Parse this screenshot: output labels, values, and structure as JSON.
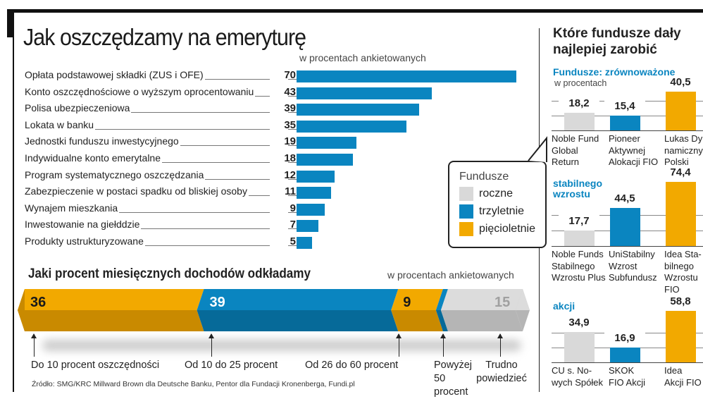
{
  "title": "Jak oszczędzamy na emeryturę",
  "chart_data": [
    {
      "type": "bar",
      "orientation": "horizontal",
      "title": "Jak oszczędzamy na emeryturę",
      "unit": "w procentach ankietowanych",
      "categories": [
        "Opłata podstawowej składki (ZUS i OFE)",
        "Konto oszczędnościowe o wyższym oprocentowaniu",
        "Polisa ubezpieczeniowa",
        "Lokata w banku",
        "Jednostki funduszu inwestycyjnego",
        "Indywidualne konto emerytalne",
        "Program systematycznego oszczędzania",
        "Zabezpieczenie w postaci spadku od bliskiej osoby",
        "Wynajem mieszkania",
        "Inwestowanie na giełddzie",
        "Produkty ustrukturyzowane"
      ],
      "values": [
        70,
        43,
        39,
        35,
        19,
        18,
        12,
        11,
        9,
        7,
        5
      ],
      "color": "#0a85c0"
    },
    {
      "type": "bar",
      "orientation": "stacked-horizontal",
      "title": "Jaki procent miesięcznych dochodów odkładamy",
      "unit": "w procentach ankietowanych",
      "segments": [
        {
          "label": "Do 10 procent oszczędności",
          "value": 36,
          "value_label": "36",
          "color": "#f2a900",
          "dark": "#c98a00",
          "text": "#1a1a1a"
        },
        {
          "label": "Od 10 do 25 procent",
          "value": 39,
          "value_label": "39",
          "color": "#0a85c0",
          "dark": "#066a99",
          "text": "#ffffff"
        },
        {
          "label": "Od 26 do 60 procent",
          "value": 9,
          "value_label": "9",
          "color": "#f2a900",
          "dark": "#c98a00",
          "text": "#1a1a1a"
        },
        {
          "label": "Powyżej 50 procent",
          "value": 1,
          "value_label": "",
          "color": "#0a85c0",
          "dark": "#066a99",
          "text": "#ffffff"
        },
        {
          "label": "Trudno powiedzieć",
          "value": 15,
          "value_label": "15",
          "color": "#dcdcdc",
          "dark": "#b5b5b5",
          "text": "#a0a0a0"
        }
      ]
    },
    {
      "type": "bar",
      "title": "Fundusze: zrównoważone",
      "unit": "w procentach",
      "categories": [
        "Noble Fund Global Return",
        "Pioneer Aktywnej Alokacji FIO",
        "Lukas Dynamiczny Polski"
      ],
      "label_lines": [
        [
          "Noble Fund",
          "Global",
          "Return"
        ],
        [
          "Pioneer",
          "Aktywnej",
          "Alokacji FIO"
        ],
        [
          "Lukas Dy",
          "namiczny",
          "Polski"
        ]
      ],
      "values": [
        18.2,
        15.4,
        40.5
      ],
      "value_labels": [
        "18,2",
        "15,4",
        "40,5"
      ]
    },
    {
      "type": "bar",
      "title": "stabilnego wzrostu",
      "categories": [
        "Noble Funds Stabilnego Wzrostu Plus",
        "UniStabilny Wzrost Subfundusz",
        "Idea Stabilnego Wzrostu FIO"
      ],
      "label_lines": [
        [
          "Noble Funds",
          "Stabilnego",
          "Wzrostu Plus"
        ],
        [
          "UniStabilny",
          "Wzrost",
          "Subfundusz"
        ],
        [
          "Idea Sta-",
          "bilnego",
          "Wzrostu",
          "FIO"
        ]
      ],
      "values": [
        17.7,
        44.5,
        74.4
      ],
      "value_labels": [
        "17,7",
        "44,5",
        "74,4"
      ]
    },
    {
      "type": "bar",
      "title": "akcji",
      "categories": [
        "CU s. Nowych Spółek",
        "SKOK FIO Akcji",
        "Idea Akcji FIO"
      ],
      "label_lines": [
        [
          "CU s. No-",
          "wych Spółek"
        ],
        [
          "SKOK",
          "FIO Akcji"
        ],
        [
          "Idea",
          "Akcji FIO"
        ]
      ],
      "values": [
        34.9,
        16.9,
        58.8
      ],
      "value_labels": [
        "34,9",
        "16,9",
        "58,8"
      ]
    }
  ],
  "right_title_lines": [
    "Które fundusze dały",
    "najlepiej zarobić"
  ],
  "legend": {
    "title": "Fundusze",
    "items": [
      {
        "label": "roczne",
        "color": "#d9d9d9"
      },
      {
        "label": "trzyletnie",
        "color": "#0a85c0"
      },
      {
        "label": "pięcioletnie",
        "color": "#f2a900"
      }
    ]
  },
  "source": "Źródło: SMG/KRC Millward Brown dla Deutsche Banku, Pentor dla Fundacji Kronenberga, Fundi.pl"
}
